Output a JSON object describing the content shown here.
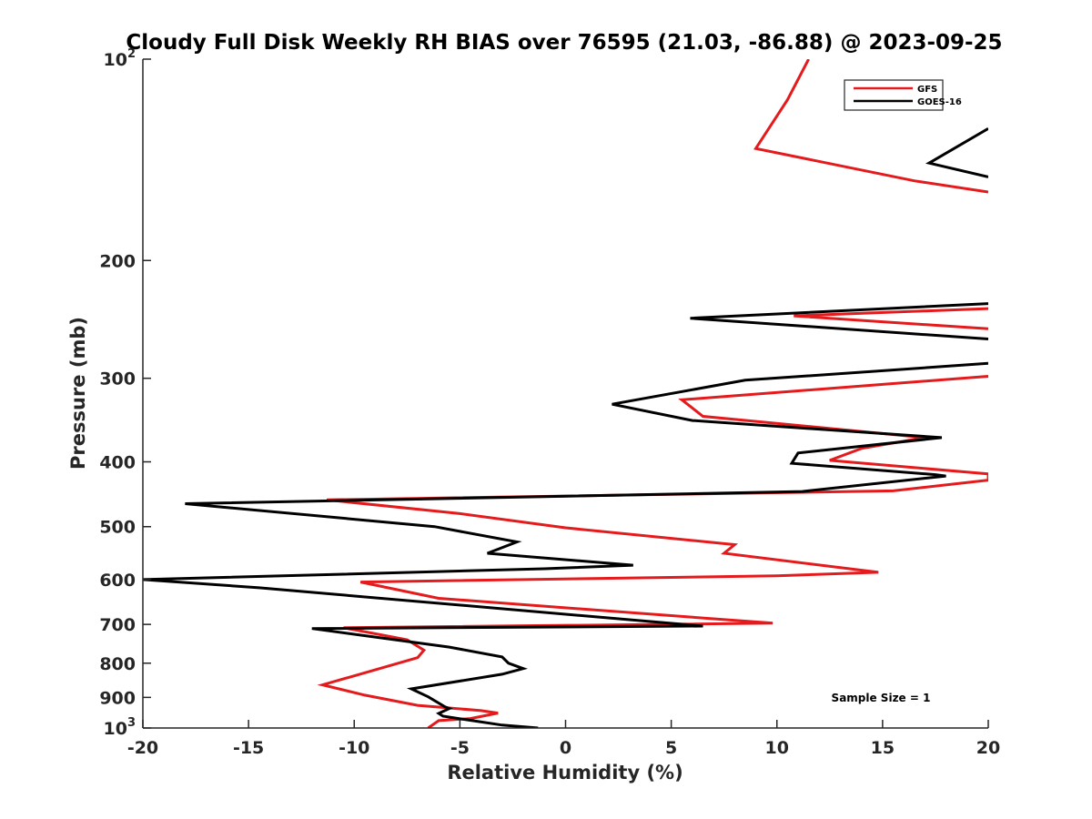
{
  "chart_data": {
    "type": "line",
    "title": "Cloudy Full Disk Weekly RH BIAS over 76595 (21.03, -86.88) @ 2023-09-25",
    "xlabel": "Relative Humidity (%)",
    "ylabel": "Pressure (mb)",
    "xlim": [
      -20,
      20
    ],
    "ylim": [
      100,
      1000
    ],
    "yscale": "log",
    "y_reversed": true,
    "grid": false,
    "legend_position": "top-right",
    "xticks": [
      -20,
      -15,
      -10,
      -5,
      0,
      5,
      10,
      15,
      20
    ],
    "xtick_labels": [
      "-20",
      "-15",
      "-10",
      "-5",
      "0",
      "5",
      "10",
      "15",
      "20"
    ],
    "yticks": [
      100,
      200,
      300,
      400,
      500,
      600,
      700,
      800,
      900,
      1000
    ],
    "ytick_labels": [
      {
        "base": "10",
        "exp": "2"
      },
      {
        "base": "200",
        "exp": ""
      },
      {
        "base": "300",
        "exp": ""
      },
      {
        "base": "400",
        "exp": ""
      },
      {
        "base": "500",
        "exp": ""
      },
      {
        "base": "600",
        "exp": ""
      },
      {
        "base": "700",
        "exp": ""
      },
      {
        "base": "800",
        "exp": ""
      },
      {
        "base": "900",
        "exp": ""
      },
      {
        "base": "10",
        "exp": "3"
      }
    ],
    "annotation": "Sample Size = 1",
    "series": [
      {
        "name": "GFS",
        "color": "#e41a1c",
        "points": [
          [
            11.5,
            100
          ],
          [
            10.5,
            115
          ],
          [
            9.0,
            136
          ],
          [
            16.5,
            152
          ],
          [
            20.0,
            158
          ],
          [
            null,
            null
          ],
          [
            20.0,
            236
          ],
          [
            10.8,
            242
          ],
          [
            20.0,
            253
          ],
          [
            null,
            null
          ],
          [
            20.0,
            298
          ],
          [
            5.5,
            323
          ],
          [
            6.5,
            342
          ],
          [
            17.0,
            368
          ],
          [
            14.0,
            382
          ],
          [
            12.5,
            398
          ],
          [
            20.0,
            417
          ],
          [
            20.0,
            426
          ],
          [
            15.5,
            442
          ],
          [
            -11.3,
            456
          ],
          [
            -5.0,
            478
          ],
          [
            0.0,
            502
          ],
          [
            8.0,
            532
          ],
          [
            7.5,
            548
          ],
          [
            14.8,
            585
          ],
          [
            10.0,
            592
          ],
          [
            -9.7,
            605
          ],
          [
            -6.0,
            640
          ],
          [
            9.8,
            697
          ],
          [
            -10.5,
            708
          ],
          [
            -7.5,
            738
          ],
          [
            -6.7,
            765
          ],
          [
            -7.0,
            785
          ],
          [
            -8.5,
            810
          ],
          [
            -11.5,
            862
          ],
          [
            -9.5,
            893
          ],
          [
            -7.0,
            925
          ],
          [
            -4.0,
            942
          ],
          [
            -3.2,
            950
          ],
          [
            -4.5,
            968
          ],
          [
            -6.0,
            975
          ],
          [
            -6.5,
            1000
          ]
        ]
      },
      {
        "name": "GOES-16",
        "color": "#000000",
        "points": [
          [
            20.0,
            127
          ],
          [
            17.2,
            143
          ],
          [
            20.0,
            150
          ],
          [
            null,
            null
          ],
          [
            20.0,
            232
          ],
          [
            5.9,
            244
          ],
          [
            20.0,
            262
          ],
          [
            null,
            null
          ],
          [
            20.0,
            285
          ],
          [
            8.5,
            302
          ],
          [
            2.2,
            328
          ],
          [
            6.0,
            347
          ],
          [
            17.8,
            368
          ],
          [
            11.0,
            388
          ],
          [
            10.7,
            402
          ],
          [
            17.5,
            418
          ],
          [
            18.0,
            420
          ],
          [
            11.2,
            443
          ],
          [
            -18.0,
            462
          ],
          [
            -6.2,
            500
          ],
          [
            -2.3,
            527
          ],
          [
            -3.7,
            548
          ],
          [
            3.2,
            571
          ],
          [
            -1.0,
            578
          ],
          [
            -20.0,
            600
          ],
          [
            -14.5,
            617
          ],
          [
            6.5,
            704
          ],
          [
            -12.0,
            710
          ],
          [
            -5.5,
            757
          ],
          [
            -3.0,
            783
          ],
          [
            -2.7,
            800
          ],
          [
            -2.0,
            815
          ],
          [
            -3.0,
            831
          ],
          [
            -7.3,
            874
          ],
          [
            -6.5,
            898
          ],
          [
            -5.7,
            930
          ],
          [
            -5.5,
            935
          ],
          [
            -6.0,
            951
          ],
          [
            -5.8,
            960
          ],
          [
            -3.0,
            990
          ],
          [
            -1.3,
            1000
          ]
        ]
      }
    ]
  }
}
